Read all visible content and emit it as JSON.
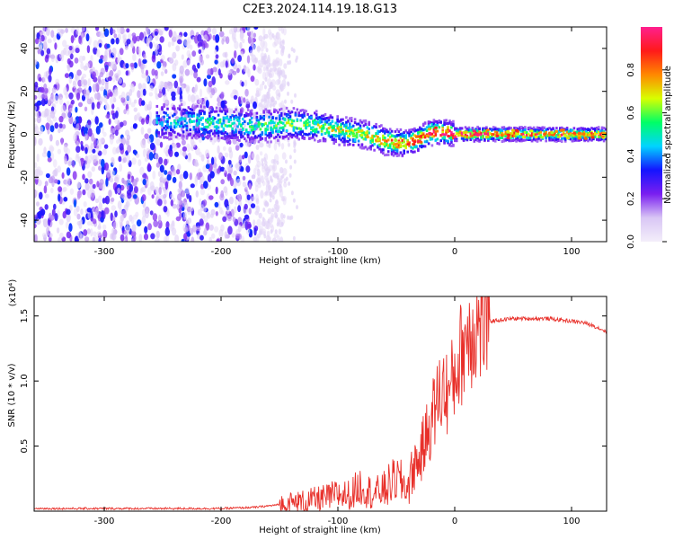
{
  "title": "C2E3.2024.114.19.18.G13",
  "chart_data": [
    {
      "type": "heatmap",
      "xlabel": "Height of straight line (km)",
      "ylabel": "Frequency (Hz)",
      "xlim": [
        -360,
        130
      ],
      "ylim": [
        -50,
        50
      ],
      "x_ticks": [
        -300,
        -200,
        -100,
        0,
        100
      ],
      "y_ticks": [
        -40,
        -20,
        0,
        20,
        40
      ],
      "colorbar": {
        "label": "Normalized spectral amplitude",
        "range": [
          0,
          1
        ],
        "ticks": [
          "0.0",
          "0.2",
          "0.4",
          "0.6",
          "0.8"
        ],
        "tick_values": [
          0.0,
          0.2,
          0.4,
          0.6,
          0.8
        ],
        "colors": [
          "#f3eefa",
          "#d9c6f5",
          "#7a1ff0",
          "#1414ff",
          "#00d4ff",
          "#00ff66",
          "#d8ff00",
          "#ff8800",
          "#ff1a1a",
          "#ff1f8e"
        ]
      },
      "ridge": {
        "x": [
          -255,
          -230,
          -200,
          -180,
          -160,
          -140,
          -120,
          -100,
          -90,
          -80,
          -70,
          -60,
          -50,
          -40,
          -30,
          -20,
          -10,
          0,
          20,
          60,
          100,
          130
        ],
        "freq": [
          6,
          6,
          5,
          4,
          4,
          5,
          4,
          2,
          1,
          0,
          -1,
          -3,
          -4,
          -4,
          -2,
          1,
          1,
          0,
          0,
          0,
          0,
          0
        ],
        "peak_amp": [
          0.35,
          0.4,
          0.45,
          0.45,
          0.5,
          0.55,
          0.55,
          0.6,
          0.6,
          0.65,
          0.7,
          0.75,
          0.75,
          0.8,
          0.85,
          0.9,
          0.9,
          0.95,
          0.9,
          0.8,
          0.8,
          0.75
        ]
      },
      "noise_region_x": [
        -360,
        -170
      ]
    },
    {
      "type": "line",
      "xlabel": "Height of straight line (km)",
      "ylabel": "SNR (10 * v/v)",
      "y_multiplier": "(x10⁴)",
      "xlim": [
        -360,
        130
      ],
      "ylim": [
        0.0,
        1.65
      ],
      "x_ticks": [
        -300,
        -200,
        -100,
        0,
        100
      ],
      "y_ticks": [
        0.5,
        1.0,
        1.5
      ],
      "y_tick_labels": [
        "0.5",
        "1.0",
        "1.5"
      ],
      "color": "#e8302a",
      "series": [
        {
          "x": [
            -360,
            -300,
            -250,
            -200,
            -170,
            -150,
            -130,
            -110,
            -100,
            -90,
            -80,
            -70,
            -60,
            -50,
            -40,
            -35,
            -30,
            -25,
            -20,
            -15,
            -10,
            -5,
            0,
            5,
            10,
            15,
            20,
            25,
            30,
            40,
            50,
            60,
            70,
            80,
            90,
            100,
            110,
            120,
            130
          ],
          "values": [
            0.02,
            0.02,
            0.02,
            0.02,
            0.03,
            0.05,
            0.07,
            0.1,
            0.13,
            0.12,
            0.2,
            0.13,
            0.17,
            0.25,
            0.18,
            0.35,
            0.4,
            0.55,
            0.7,
            0.85,
            0.95,
            0.9,
            1.05,
            1.2,
            1.35,
            1.4,
            1.42,
            1.44,
            1.46,
            1.47,
            1.48,
            1.48,
            1.48,
            1.48,
            1.47,
            1.46,
            1.45,
            1.42,
            1.38
          ]
        }
      ]
    }
  ]
}
